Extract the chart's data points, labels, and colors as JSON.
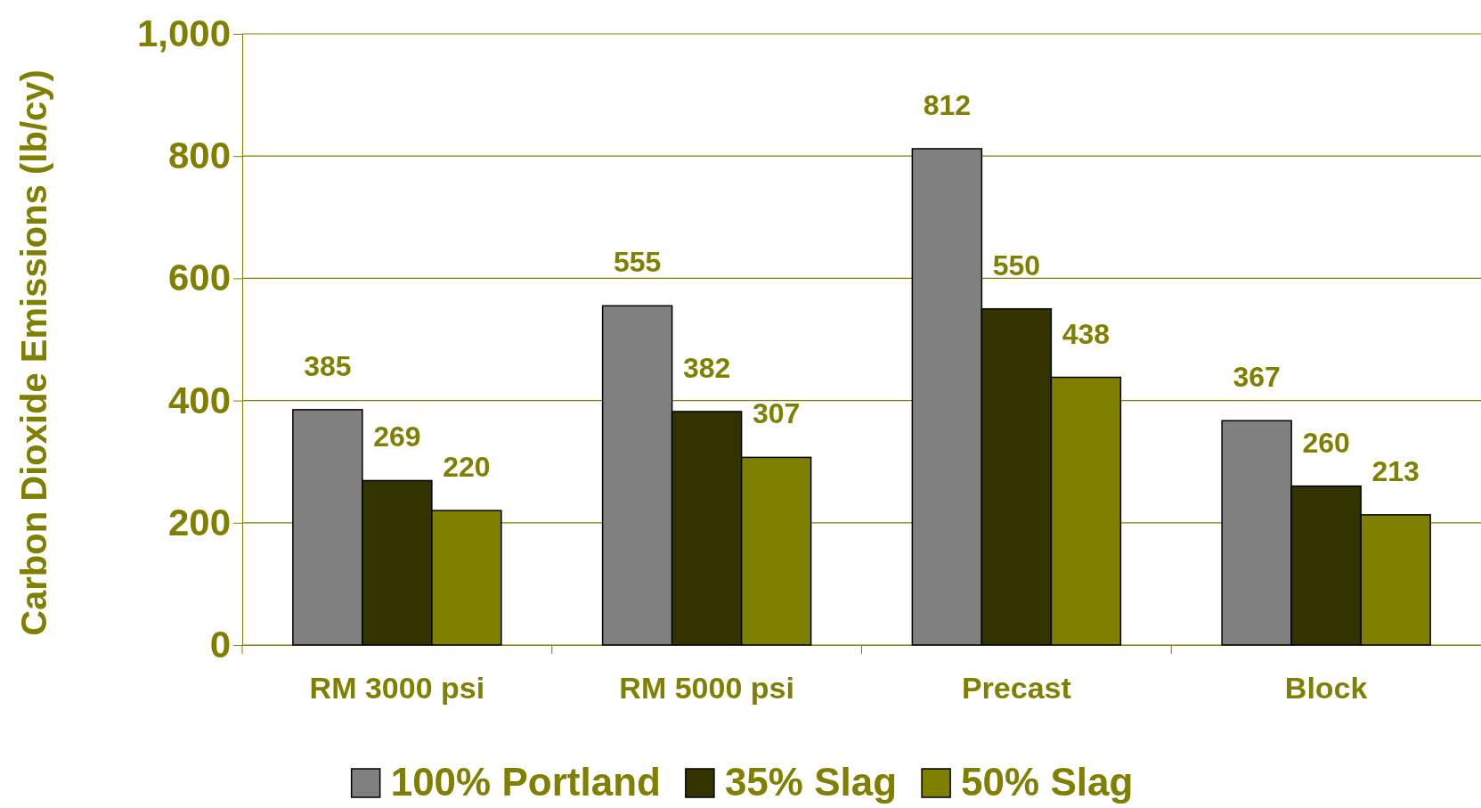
{
  "chart_data": {
    "type": "bar",
    "ylabel": "Carbon Dioxide Emissions (lb/cy)",
    "categories": [
      "RM 3000 psi",
      "RM 5000 psi",
      "Precast",
      "Block"
    ],
    "series": [
      {
        "name": "100% Portland",
        "color": "#808080",
        "values": [
          385,
          555,
          812,
          367
        ]
      },
      {
        "name": "35% Slag",
        "color": "#333300",
        "values": [
          269,
          382,
          550,
          260
        ]
      },
      {
        "name": "50% Slag",
        "color": "#808000",
        "values": [
          220,
          307,
          438,
          213
        ]
      }
    ],
    "ylim": [
      0,
      1000
    ],
    "yticks": [
      0,
      200,
      400,
      600,
      800,
      {
        "value": 1000,
        "label": "1,000"
      }
    ],
    "grid": "y",
    "legend": "bottom",
    "data_labels": true
  }
}
